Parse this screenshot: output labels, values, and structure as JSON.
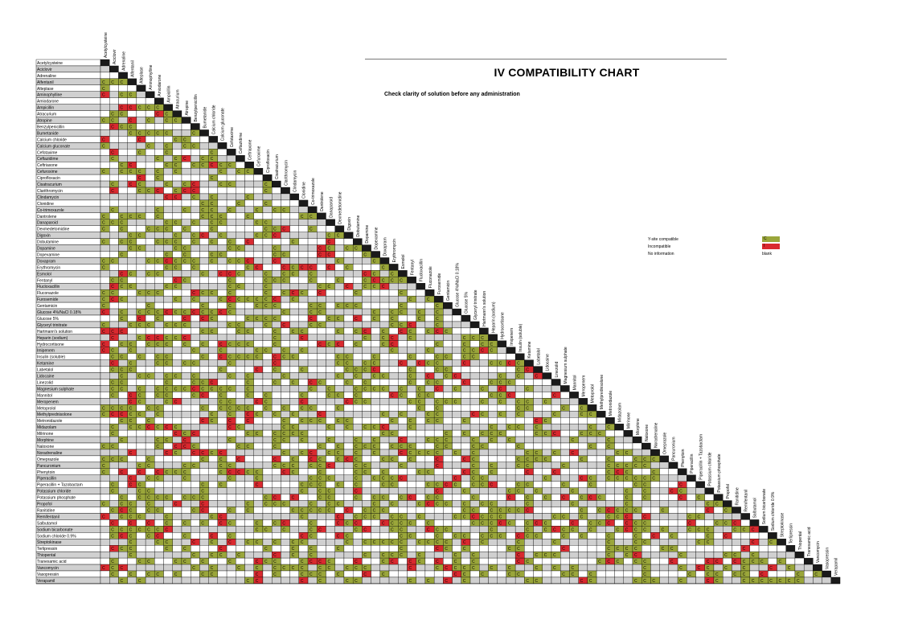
{
  "title": "IV COMPATIBILITY CHART",
  "subtitle": "Check clarity of solution before any administration",
  "legend": [
    {
      "label": "Y-site compatible",
      "marker": "C",
      "color": "#9aa63a"
    },
    {
      "label": "Incompatible",
      "marker": "I",
      "color": "#d9292f"
    },
    {
      "label": "No information",
      "marker": "blank"
    }
  ],
  "colors": {
    "compatible": "#9aa63a",
    "incompatible": "#d9292f",
    "diagonal": "#1a1a1a",
    "grid": "#000000",
    "shade": "#d0d0d0"
  },
  "cell_marker": "C",
  "drugs": [
    "Acetylcysteine",
    "Aciclovir",
    "Adrenaline",
    "Alfentanil",
    "Alteplase",
    "Aminophylline",
    "Amiodarone",
    "Ampicillin",
    "Atracurium",
    "Atropine",
    "Benzylpenicillin",
    "Bumetanide",
    "Calcium chloride",
    "Calcium gluconate",
    "Cefotaxime",
    "Ceftazidime",
    "Ceftriaxone",
    "Cefuroxime",
    "Ciprofloxacin",
    "Cisatracurium",
    "Clarithromycin",
    "Clindamycin",
    "Clonidine",
    "Co-trimoxazole",
    "Dantrolene",
    "Danaparoid",
    "Dexmedetomidine",
    "Digoxin",
    "Dobutamine",
    "Dopamine",
    "Dopexamine",
    "Doxapram",
    "Erythromycin",
    "Esmolol",
    "Fentanyl",
    "Flucloxacillin",
    "Fluconazole",
    "Furosemide",
    "Gentamicin",
    "Glucose 4%/NaCl 0.18%",
    "Glucose 5%",
    "Glyceryl trinitrate",
    "Hartmann's solution",
    "Heparin (sodium)",
    "Hydrocortisone",
    "Imipenem",
    "Insulin (soluble)",
    "Ketamine",
    "Labetalol",
    "Lidocaine",
    "Linezolid",
    "Magnesium sulphate",
    "Mannitol",
    "Meropenem",
    "Metoprolol",
    "Methylprednisolone",
    "Metronidazole",
    "Midazolam",
    "Milrinone",
    "Morphine",
    "Naloxone",
    "Noradrenaline",
    "Omeprazole",
    "Pancuronium",
    "Phenytoin",
    "Piperacillin",
    "Piperacillin + Tazobactam",
    "Potassium chloride",
    "Potassium phosphate",
    "Propofol",
    "Ranitidine",
    "Remifentanil",
    "Salbutamol",
    "Sodium bicarbonate",
    "Sodium chloride 0.9%",
    "Streptokinase",
    "Terlipressin",
    "Thiopental",
    "Tranexamic acid",
    "Vancomycin",
    "Vasopressin",
    "Verapamil"
  ]
}
